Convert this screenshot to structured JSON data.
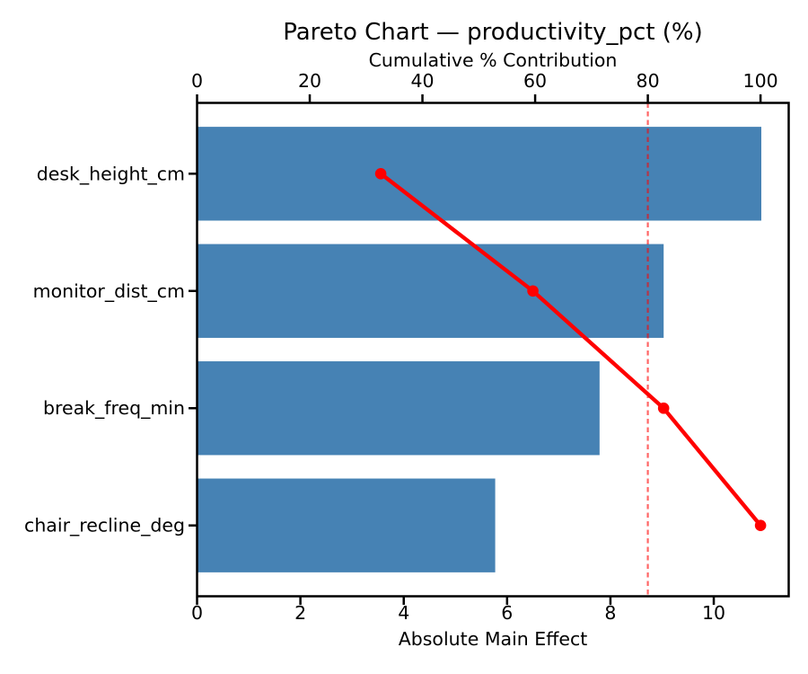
{
  "chart": {
    "title": "Pareto Chart — productivity_pct (%)",
    "top_axis_label": "Cumulative % Contribution",
    "bottom_axis_label": "Absolute Main Effect"
  },
  "chart_data": {
    "type": "bar",
    "orientation": "horizontal",
    "title": "Pareto Chart — productivity_pct (%)",
    "categories": [
      "desk_height_cm",
      "monitor_dist_cm",
      "break_freq_min",
      "chair_recline_deg"
    ],
    "series": [
      {
        "name": "Absolute Main Effect",
        "type": "bar",
        "values": [
          10.92,
          9.03,
          7.79,
          5.77
        ]
      },
      {
        "name": "Cumulative % Contribution",
        "type": "line",
        "values": [
          32.6,
          59.6,
          82.8,
          100.0
        ]
      }
    ],
    "bottom_axis": {
      "label": "Absolute Main Effect",
      "ticks": [
        0,
        2,
        4,
        6,
        8,
        10
      ],
      "range": [
        0,
        11.45
      ]
    },
    "top_axis": {
      "label": "Cumulative % Contribution",
      "ticks": [
        0,
        20,
        40,
        60,
        80,
        100
      ],
      "range": [
        0,
        105
      ]
    },
    "threshold_line": {
      "value": 80,
      "axis": "top",
      "style": "dashed",
      "color": "#ff0000",
      "opacity": 0.6
    },
    "colors": {
      "bar": "#4682b4",
      "line": "#ff0000",
      "spine": "#000000",
      "text": "#000000"
    },
    "legend": false,
    "grid": false
  }
}
